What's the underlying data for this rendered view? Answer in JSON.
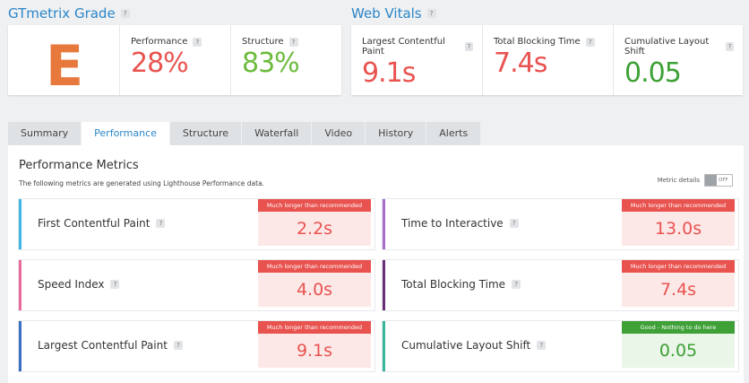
{
  "grade": {
    "title": "GTmetrix Grade",
    "letter": "E",
    "performance_label": "Performance",
    "performance_value": "28%",
    "structure_label": "Structure",
    "structure_value": "83%"
  },
  "vitals": {
    "title": "Web Vitals",
    "lcp_label": "Largest Contentful Paint",
    "lcp_value": "9.1s",
    "tbt_label": "Total Blocking Time",
    "tbt_value": "7.4s",
    "cls_label": "Cumulative Layout Shift",
    "cls_value": "0.05"
  },
  "help_glyph": "?",
  "tabs": [
    "Summary",
    "Performance",
    "Structure",
    "Waterfall",
    "Video",
    "History",
    "Alerts"
  ],
  "active_tab": "Performance",
  "panel": {
    "title": "Performance Metrics",
    "description": "The following metrics are generated using Lighthouse Performance data.",
    "toggle_label": "Metric details",
    "toggle_state": "OFF"
  },
  "metrics": [
    {
      "label": "First Contentful Paint",
      "value": "2.2s",
      "badge": "Much longer than recommended",
      "status": "bad",
      "accent": "#3fb6e5"
    },
    {
      "label": "Time to Interactive",
      "value": "13.0s",
      "badge": "Much longer than recommended",
      "status": "bad",
      "accent": "#a86dcb"
    },
    {
      "label": "Speed Index",
      "value": "4.0s",
      "badge": "Much longer than recommended",
      "status": "bad",
      "accent": "#e96b9c"
    },
    {
      "label": "Total Blocking Time",
      "value": "7.4s",
      "badge": "Much longer than recommended",
      "status": "bad",
      "accent": "#6b2f7a"
    },
    {
      "label": "Largest Contentful Paint",
      "value": "9.1s",
      "badge": "Much longer than recommended",
      "status": "bad",
      "accent": "#3a6fc4"
    },
    {
      "label": "Cumulative Layout Shift",
      "value": "0.05",
      "badge": "Good - Nothing to do here",
      "status": "good",
      "accent": "#3ab79a"
    }
  ],
  "colors": {
    "link_blue": "#2b86c8",
    "grade_orange": "#e8793c",
    "bad_red": "#e8534f",
    "good_green": "#3ea036"
  }
}
